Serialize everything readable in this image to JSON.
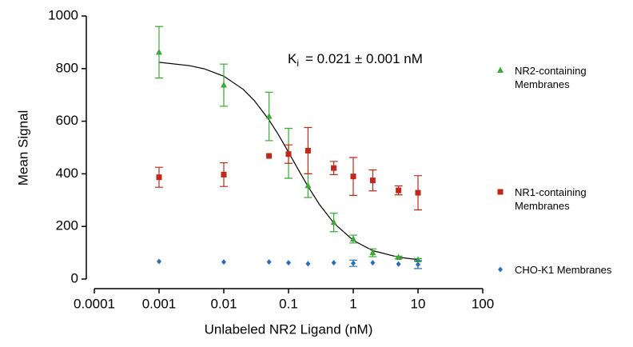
{
  "chart_data": {
    "type": "scatter",
    "xlabel": "Unlabeled NR2 Ligand (nM)",
    "ylabel": "Mean Signal",
    "annotation": {
      "symbol": "K",
      "subscript": "i",
      "text": "= 0.021 ± 0.001 nM"
    },
    "log_x": true,
    "xlim": [
      0.0001,
      100
    ],
    "xticks": [
      0.0001,
      0.001,
      0.01,
      0.1,
      1,
      10,
      100
    ],
    "ylim": [
      0,
      1000
    ],
    "yticks": [
      0,
      200,
      400,
      600,
      800,
      1000
    ],
    "x": [
      0.001,
      0.01,
      0.05,
      0.1,
      0.2,
      0.5,
      1,
      2,
      5,
      10
    ],
    "series": [
      {
        "name": "NR2-containing Membranes",
        "color": "#3aaa35",
        "marker": "triangle",
        "values": [
          862,
          737,
          618,
          478,
          355,
          215,
          152,
          100,
          82,
          73
        ],
        "errors": [
          98,
          80,
          92,
          95,
          45,
          35,
          15,
          15,
          5,
          5
        ]
      },
      {
        "name": "NR1-containing Membranes",
        "color": "#c0281c",
        "marker": "square",
        "values": [
          387,
          397,
          468,
          475,
          488,
          422,
          390,
          375,
          337,
          328
        ],
        "errors": [
          38,
          45,
          null,
          35,
          88,
          25,
          72,
          40,
          17,
          65
        ]
      },
      {
        "name": "CHO-K1 Membranes",
        "color": "#2a6ebb",
        "marker": "diamond",
        "values": [
          67,
          65,
          65,
          62,
          58,
          62,
          60,
          62,
          57,
          55
        ],
        "errors": [
          null,
          null,
          null,
          null,
          null,
          null,
          12,
          null,
          null,
          15
        ]
      }
    ],
    "fit": {
      "color": "#000000",
      "x": [
        0.001,
        0.003,
        0.005,
        0.01,
        0.02,
        0.03,
        0.05,
        0.07,
        0.1,
        0.15,
        0.2,
        0.3,
        0.5,
        1,
        2,
        5,
        10
      ],
      "values": [
        824,
        811,
        799,
        771,
        721,
        677,
        605,
        548,
        482,
        405,
        352,
        284,
        213,
        147,
        108,
        83,
        74
      ]
    }
  }
}
